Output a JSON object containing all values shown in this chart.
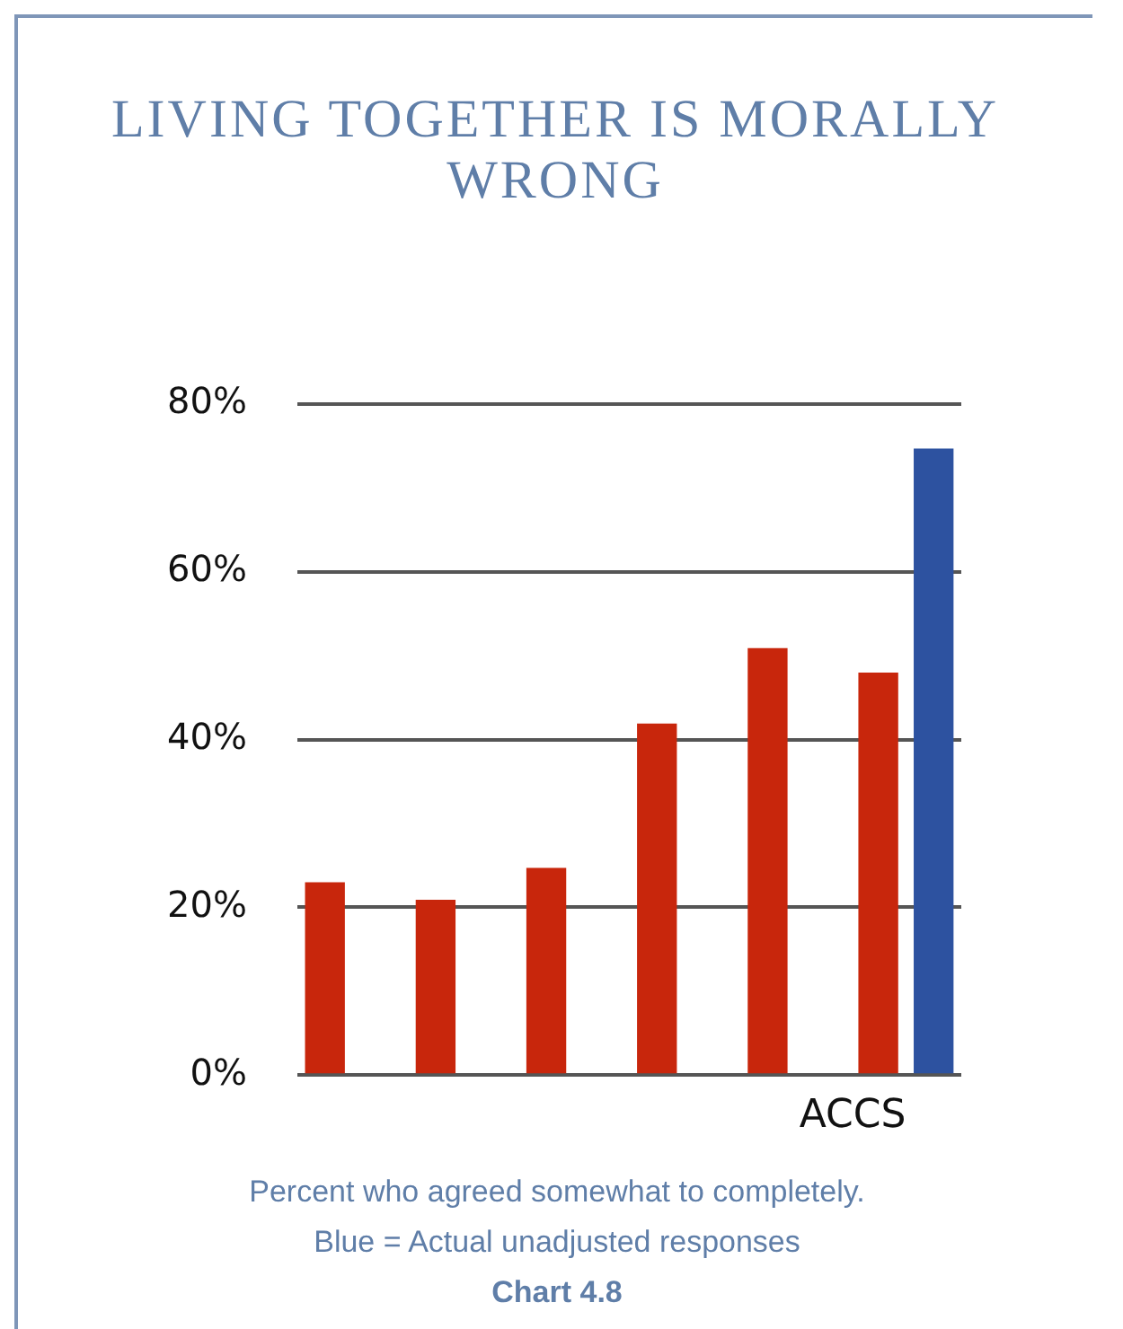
{
  "chart_data": {
    "type": "bar",
    "title": "LIVING TOGETHER IS MORALLY WRONG",
    "categories": [
      null,
      null,
      null,
      null,
      null,
      "ACCS"
    ],
    "series": [
      {
        "color": "#c8260c",
        "values": [
          23.0,
          20.9,
          24.7,
          41.9,
          50.9,
          48.0
        ]
      },
      {
        "color": "#2d52a0",
        "values": [
          null,
          null,
          null,
          null,
          null,
          74.7
        ]
      }
    ],
    "ylim": [
      0,
      80
    ],
    "yticks": [
      {
        "value": 0,
        "label": "0%"
      },
      {
        "value": 20,
        "label": "20%"
      },
      {
        "value": 40,
        "label": "40%"
      },
      {
        "value": 60,
        "label": "60%"
      },
      {
        "value": 80,
        "label": "80%"
      }
    ],
    "grid": "y",
    "annotations": [
      "Percent who agreed somewhat to completely.",
      "Blue = Actual unadjusted responses",
      "Chart 4.8"
    ]
  }
}
